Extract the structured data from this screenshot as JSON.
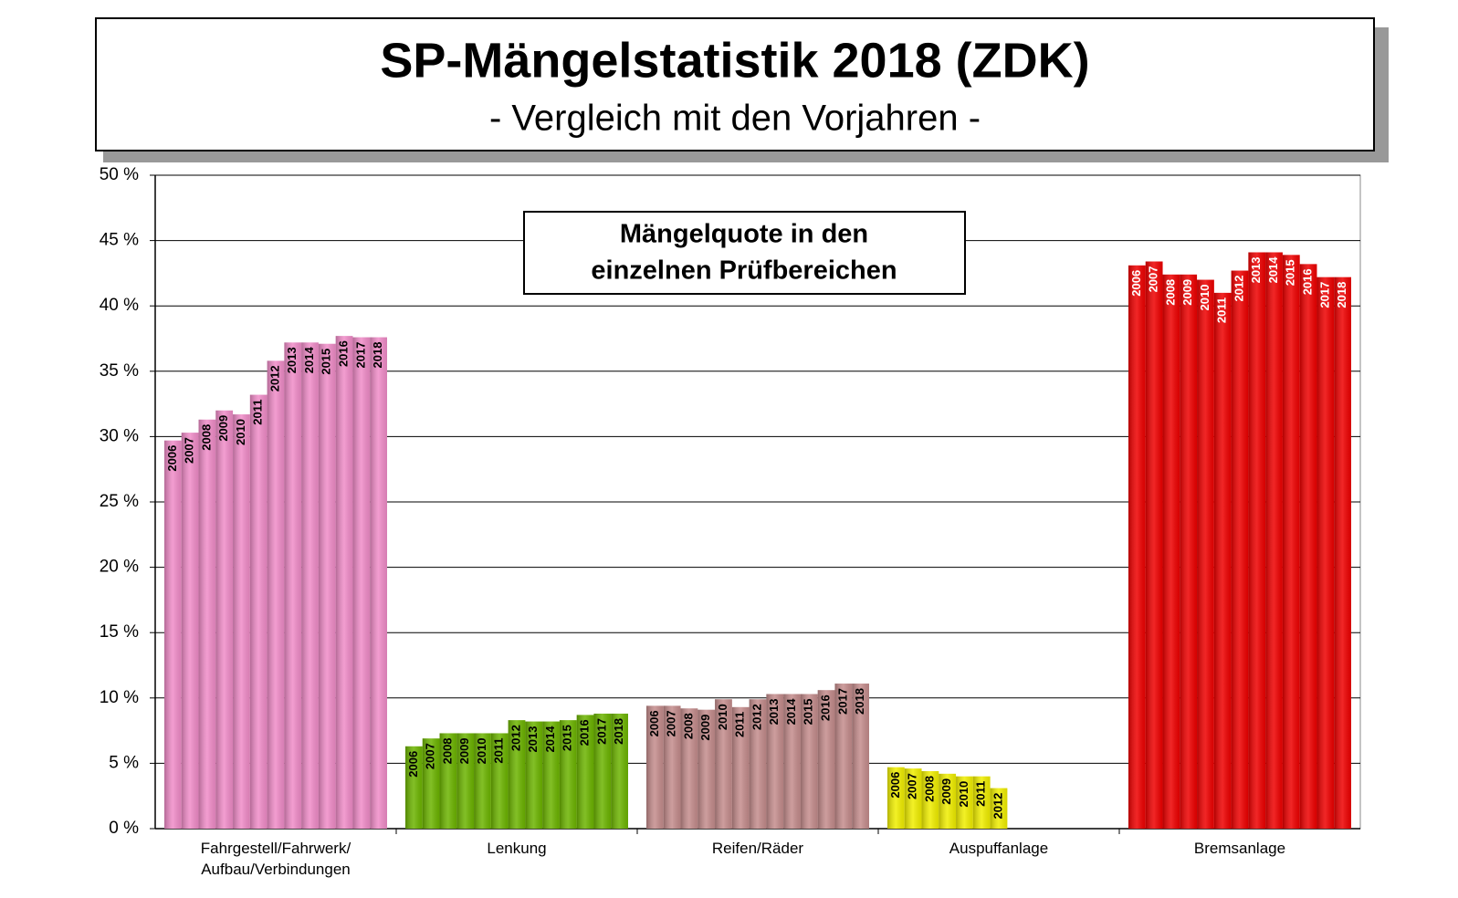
{
  "chart_data": {
    "type": "grouped_bar",
    "title": "SP-Mängelstatistik 2018 (ZDK)",
    "subtitle": "- Vergleich mit den Vorjahren -",
    "annotation": [
      "Mängelquote in den",
      "einzelnen Prüfbereichen"
    ],
    "categories": [
      "Fahrgestell/Fahrwerk/ Aufbau/Verbindungen",
      "Lenkung",
      "Reifen/Räder",
      "Auspuffanlage",
      "Bremsanlage"
    ],
    "category_colors": [
      "#f08cc8",
      "#6cb400",
      "#c48c8c",
      "#f0ee00",
      "#ee0000"
    ],
    "series": [
      {
        "name": "2006",
        "values": [
          29.7,
          6.3,
          9.4,
          4.7,
          43.1
        ]
      },
      {
        "name": "2007",
        "values": [
          30.3,
          6.9,
          9.4,
          4.6,
          43.4
        ]
      },
      {
        "name": "2008",
        "values": [
          31.3,
          7.3,
          9.2,
          4.4,
          42.4
        ]
      },
      {
        "name": "2009",
        "values": [
          32.0,
          7.3,
          9.1,
          4.2,
          42.4
        ]
      },
      {
        "name": "2010",
        "values": [
          31.7,
          7.3,
          9.9,
          4.0,
          42.0
        ]
      },
      {
        "name": "2011",
        "values": [
          33.2,
          7.3,
          9.3,
          4.0,
          41.0
        ]
      },
      {
        "name": "2012",
        "values": [
          35.8,
          8.3,
          9.9,
          3.1,
          42.7
        ]
      },
      {
        "name": "2013",
        "values": [
          37.2,
          8.2,
          10.3,
          null,
          44.1
        ]
      },
      {
        "name": "2014",
        "values": [
          37.2,
          8.2,
          10.3,
          null,
          44.1
        ]
      },
      {
        "name": "2015",
        "values": [
          37.1,
          8.3,
          10.3,
          null,
          43.9
        ]
      },
      {
        "name": "2016",
        "values": [
          37.7,
          8.7,
          10.6,
          null,
          43.2
        ]
      },
      {
        "name": "2017",
        "values": [
          37.6,
          8.8,
          11.1,
          null,
          42.2
        ]
      },
      {
        "name": "2018",
        "values": [
          37.6,
          8.8,
          11.1,
          null,
          42.2
        ]
      }
    ],
    "ylim": [
      0,
      50
    ],
    "yticks": [
      {
        "value": 0,
        "label": "0 %"
      },
      {
        "value": 5,
        "label": "5 %"
      },
      {
        "value": 10,
        "label": "10 %"
      },
      {
        "value": 15,
        "label": "15 %"
      },
      {
        "value": 20,
        "label": "20 %"
      },
      {
        "value": 25,
        "label": "25 %"
      },
      {
        "value": 30,
        "label": "30 %"
      },
      {
        "value": 35,
        "label": "35 %"
      },
      {
        "value": 40,
        "label": "40 %"
      },
      {
        "value": 45,
        "label": "45 %"
      },
      {
        "value": 50,
        "label": "50 %"
      }
    ],
    "grid": true
  }
}
